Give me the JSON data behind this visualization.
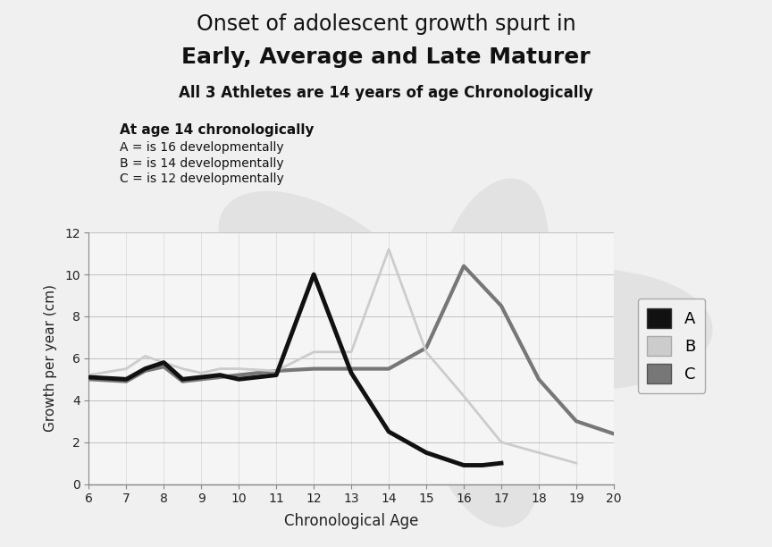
{
  "title_line1": "Onset of adolescent growth spurt in",
  "title_line2": "Early, Average and Late Maturer",
  "subtitle": "All 3 Athletes are 14 years of age Chronologically",
  "annotation_title": "At age 14 chronologically",
  "annotation_A": "A = is 16 developmentally",
  "annotation_B": "B = is 14 developmentally",
  "annotation_C": "C = is 12 developmentally",
  "xlabel": "Chronological Age",
  "ylabel": "Growth per year (cm)",
  "xlim": [
    6,
    20
  ],
  "ylim": [
    0,
    12
  ],
  "xticks": [
    6,
    7,
    8,
    9,
    10,
    11,
    12,
    13,
    14,
    15,
    16,
    17,
    18,
    19,
    20
  ],
  "yticks": [
    0,
    2,
    4,
    6,
    8,
    10,
    12
  ],
  "series_A_x": [
    6,
    7,
    7.5,
    8,
    8.5,
    9,
    9.5,
    10,
    11,
    12,
    13,
    14,
    15,
    16,
    16.5,
    17
  ],
  "series_A_y": [
    5.1,
    5.0,
    5.5,
    5.8,
    5.0,
    5.1,
    5.2,
    5.0,
    5.2,
    10.0,
    5.3,
    2.5,
    1.5,
    0.9,
    0.9,
    1.0
  ],
  "series_B_x": [
    6,
    7,
    7.5,
    8,
    8.5,
    9,
    9.5,
    10,
    11,
    12,
    13,
    14,
    15,
    16,
    17,
    18,
    19
  ],
  "series_B_y": [
    5.2,
    5.5,
    6.1,
    5.8,
    5.5,
    5.3,
    5.5,
    5.5,
    5.4,
    6.3,
    6.3,
    11.2,
    6.3,
    4.2,
    2.0,
    1.5,
    1.0
  ],
  "series_C_x": [
    6,
    7,
    7.5,
    8,
    8.5,
    9,
    9.5,
    10,
    11,
    12,
    13,
    14,
    15,
    16,
    17,
    18,
    19,
    20
  ],
  "series_C_y": [
    5.0,
    4.9,
    5.4,
    5.6,
    4.9,
    5.0,
    5.1,
    5.2,
    5.4,
    5.5,
    5.5,
    5.5,
    6.5,
    10.4,
    8.5,
    5.0,
    3.0,
    2.4
  ],
  "color_A": "#111111",
  "color_B": "#cccccc",
  "color_C": "#777777",
  "linewidth_A": 3.5,
  "linewidth_B": 2.0,
  "linewidth_C": 3.0,
  "bg_color": "#f0f0f0",
  "plot_bg": "#f5f5f5",
  "legend_patch_colors": [
    "#111111",
    "#cccccc",
    "#777777"
  ],
  "legend_labels": [
    "A",
    "B",
    "C"
  ]
}
